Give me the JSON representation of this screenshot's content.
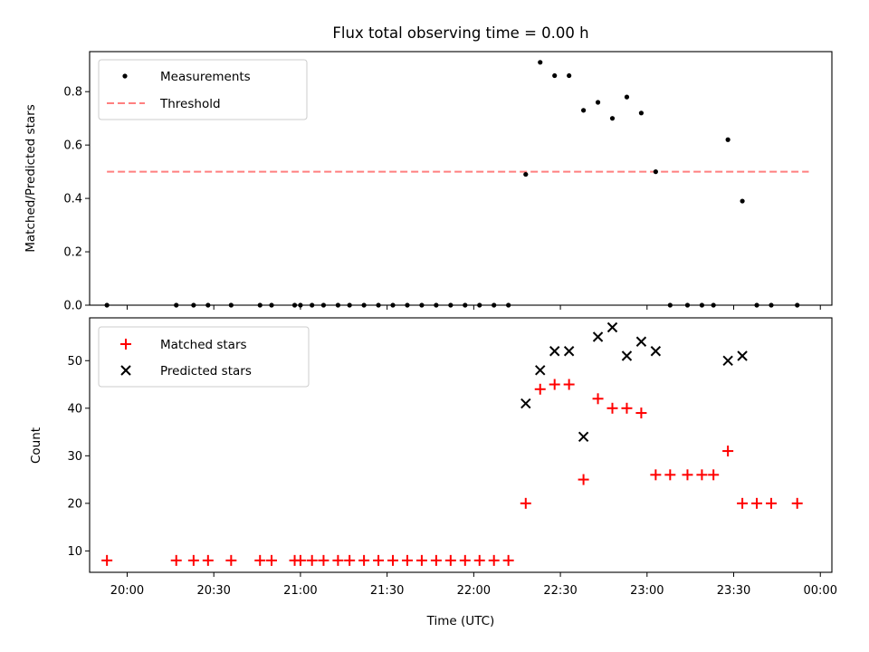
{
  "figure": {
    "title": "Flux total observing time = 0.00 h"
  },
  "colors": {
    "measurement": "#000000",
    "threshold": "#ff7f7f",
    "matched": "#ff0000",
    "predicted": "#000000"
  },
  "chart_data": [
    {
      "type": "scatter",
      "name": "ratio-panel",
      "ylabel": "Matched/Predicted stars",
      "xlabel": "",
      "ylim": [
        0,
        0.95
      ],
      "yticks": [
        0.0,
        0.2,
        0.4,
        0.6,
        0.8
      ],
      "ytick_labels": [
        "0.0",
        "0.2",
        "0.4",
        "0.6",
        "0.8"
      ],
      "legend": {
        "location": "upper-left",
        "entries": [
          "Measurements",
          "Threshold"
        ]
      },
      "threshold": {
        "name": "Threshold",
        "value": 0.5,
        "x_range": [
          "19:53",
          "23:56"
        ],
        "style": "dashed"
      },
      "series": [
        {
          "name": "Measurements",
          "marker": "dot",
          "x": [
            "19:53",
            "20:17",
            "20:23",
            "20:28",
            "20:36",
            "20:46",
            "20:50",
            "20:58",
            "21:00",
            "21:04",
            "21:08",
            "21:13",
            "21:17",
            "21:22",
            "21:27",
            "21:32",
            "21:37",
            "21:42",
            "21:47",
            "21:52",
            "21:57",
            "22:02",
            "22:07",
            "22:12",
            "22:18",
            "22:23",
            "22:28",
            "22:33",
            "22:38",
            "22:43",
            "22:48",
            "22:53",
            "22:58",
            "23:03",
            "23:08",
            "23:14",
            "23:19",
            "23:23",
            "23:28",
            "23:33",
            "23:38",
            "23:43",
            "23:52"
          ],
          "y": [
            0,
            0,
            0,
            0,
            0,
            0,
            0,
            0,
            0,
            0,
            0,
            0,
            0,
            0,
            0,
            0,
            0,
            0,
            0,
            0,
            0,
            0,
            0,
            0,
            0.49,
            0.91,
            0.86,
            0.86,
            0.73,
            0.76,
            0.7,
            0.78,
            0.72,
            0.5,
            0,
            0,
            0,
            0,
            0.62,
            0.39,
            0,
            0,
            0
          ]
        }
      ]
    },
    {
      "type": "scatter",
      "name": "count-panel",
      "ylabel": "Count",
      "xlabel": "Time (UTC)",
      "ylim": [
        5.5,
        59
      ],
      "yticks": [
        10,
        20,
        30,
        40,
        50
      ],
      "ytick_labels": [
        "10",
        "20",
        "30",
        "40",
        "50"
      ],
      "xticks": [
        "20:00",
        "20:30",
        "21:00",
        "21:30",
        "22:00",
        "22:30",
        "23:00",
        "23:30",
        "24:00"
      ],
      "xtick_labels": [
        "20:00",
        "20:30",
        "21:00",
        "21:30",
        "22:00",
        "22:30",
        "23:00",
        "23:30",
        "00:00"
      ],
      "xlim": [
        "19:47",
        "24:04"
      ],
      "legend": {
        "location": "upper-left",
        "entries": [
          "Matched stars",
          "Predicted stars"
        ]
      },
      "series": [
        {
          "name": "Matched stars",
          "marker": "plus",
          "x": [
            "19:53",
            "20:17",
            "20:23",
            "20:28",
            "20:36",
            "20:46",
            "20:50",
            "20:58",
            "21:00",
            "21:04",
            "21:08",
            "21:13",
            "21:17",
            "21:22",
            "21:27",
            "21:32",
            "21:37",
            "21:42",
            "21:47",
            "21:52",
            "21:57",
            "22:02",
            "22:07",
            "22:12",
            "22:18",
            "22:23",
            "22:28",
            "22:33",
            "22:38",
            "22:43",
            "22:48",
            "22:53",
            "22:58",
            "23:03",
            "23:08",
            "23:14",
            "23:19",
            "23:23",
            "23:28",
            "23:33",
            "23:38",
            "23:43",
            "23:52"
          ],
          "y": [
            8,
            8,
            8,
            8,
            8,
            8,
            8,
            8,
            8,
            8,
            8,
            8,
            8,
            8,
            8,
            8,
            8,
            8,
            8,
            8,
            8,
            8,
            8,
            8,
            20,
            44,
            45,
            45,
            25,
            42,
            40,
            40,
            39,
            26,
            26,
            26,
            26,
            26,
            31,
            20,
            20,
            20,
            20
          ]
        },
        {
          "name": "Predicted stars",
          "marker": "x",
          "x": [
            "22:18",
            "22:23",
            "22:28",
            "22:33",
            "22:38",
            "22:43",
            "22:48",
            "22:53",
            "22:58",
            "23:03",
            "23:28",
            "23:33"
          ],
          "y": [
            41,
            48,
            52,
            52,
            34,
            55,
            57,
            51,
            54,
            52,
            50,
            51
          ]
        }
      ]
    }
  ]
}
